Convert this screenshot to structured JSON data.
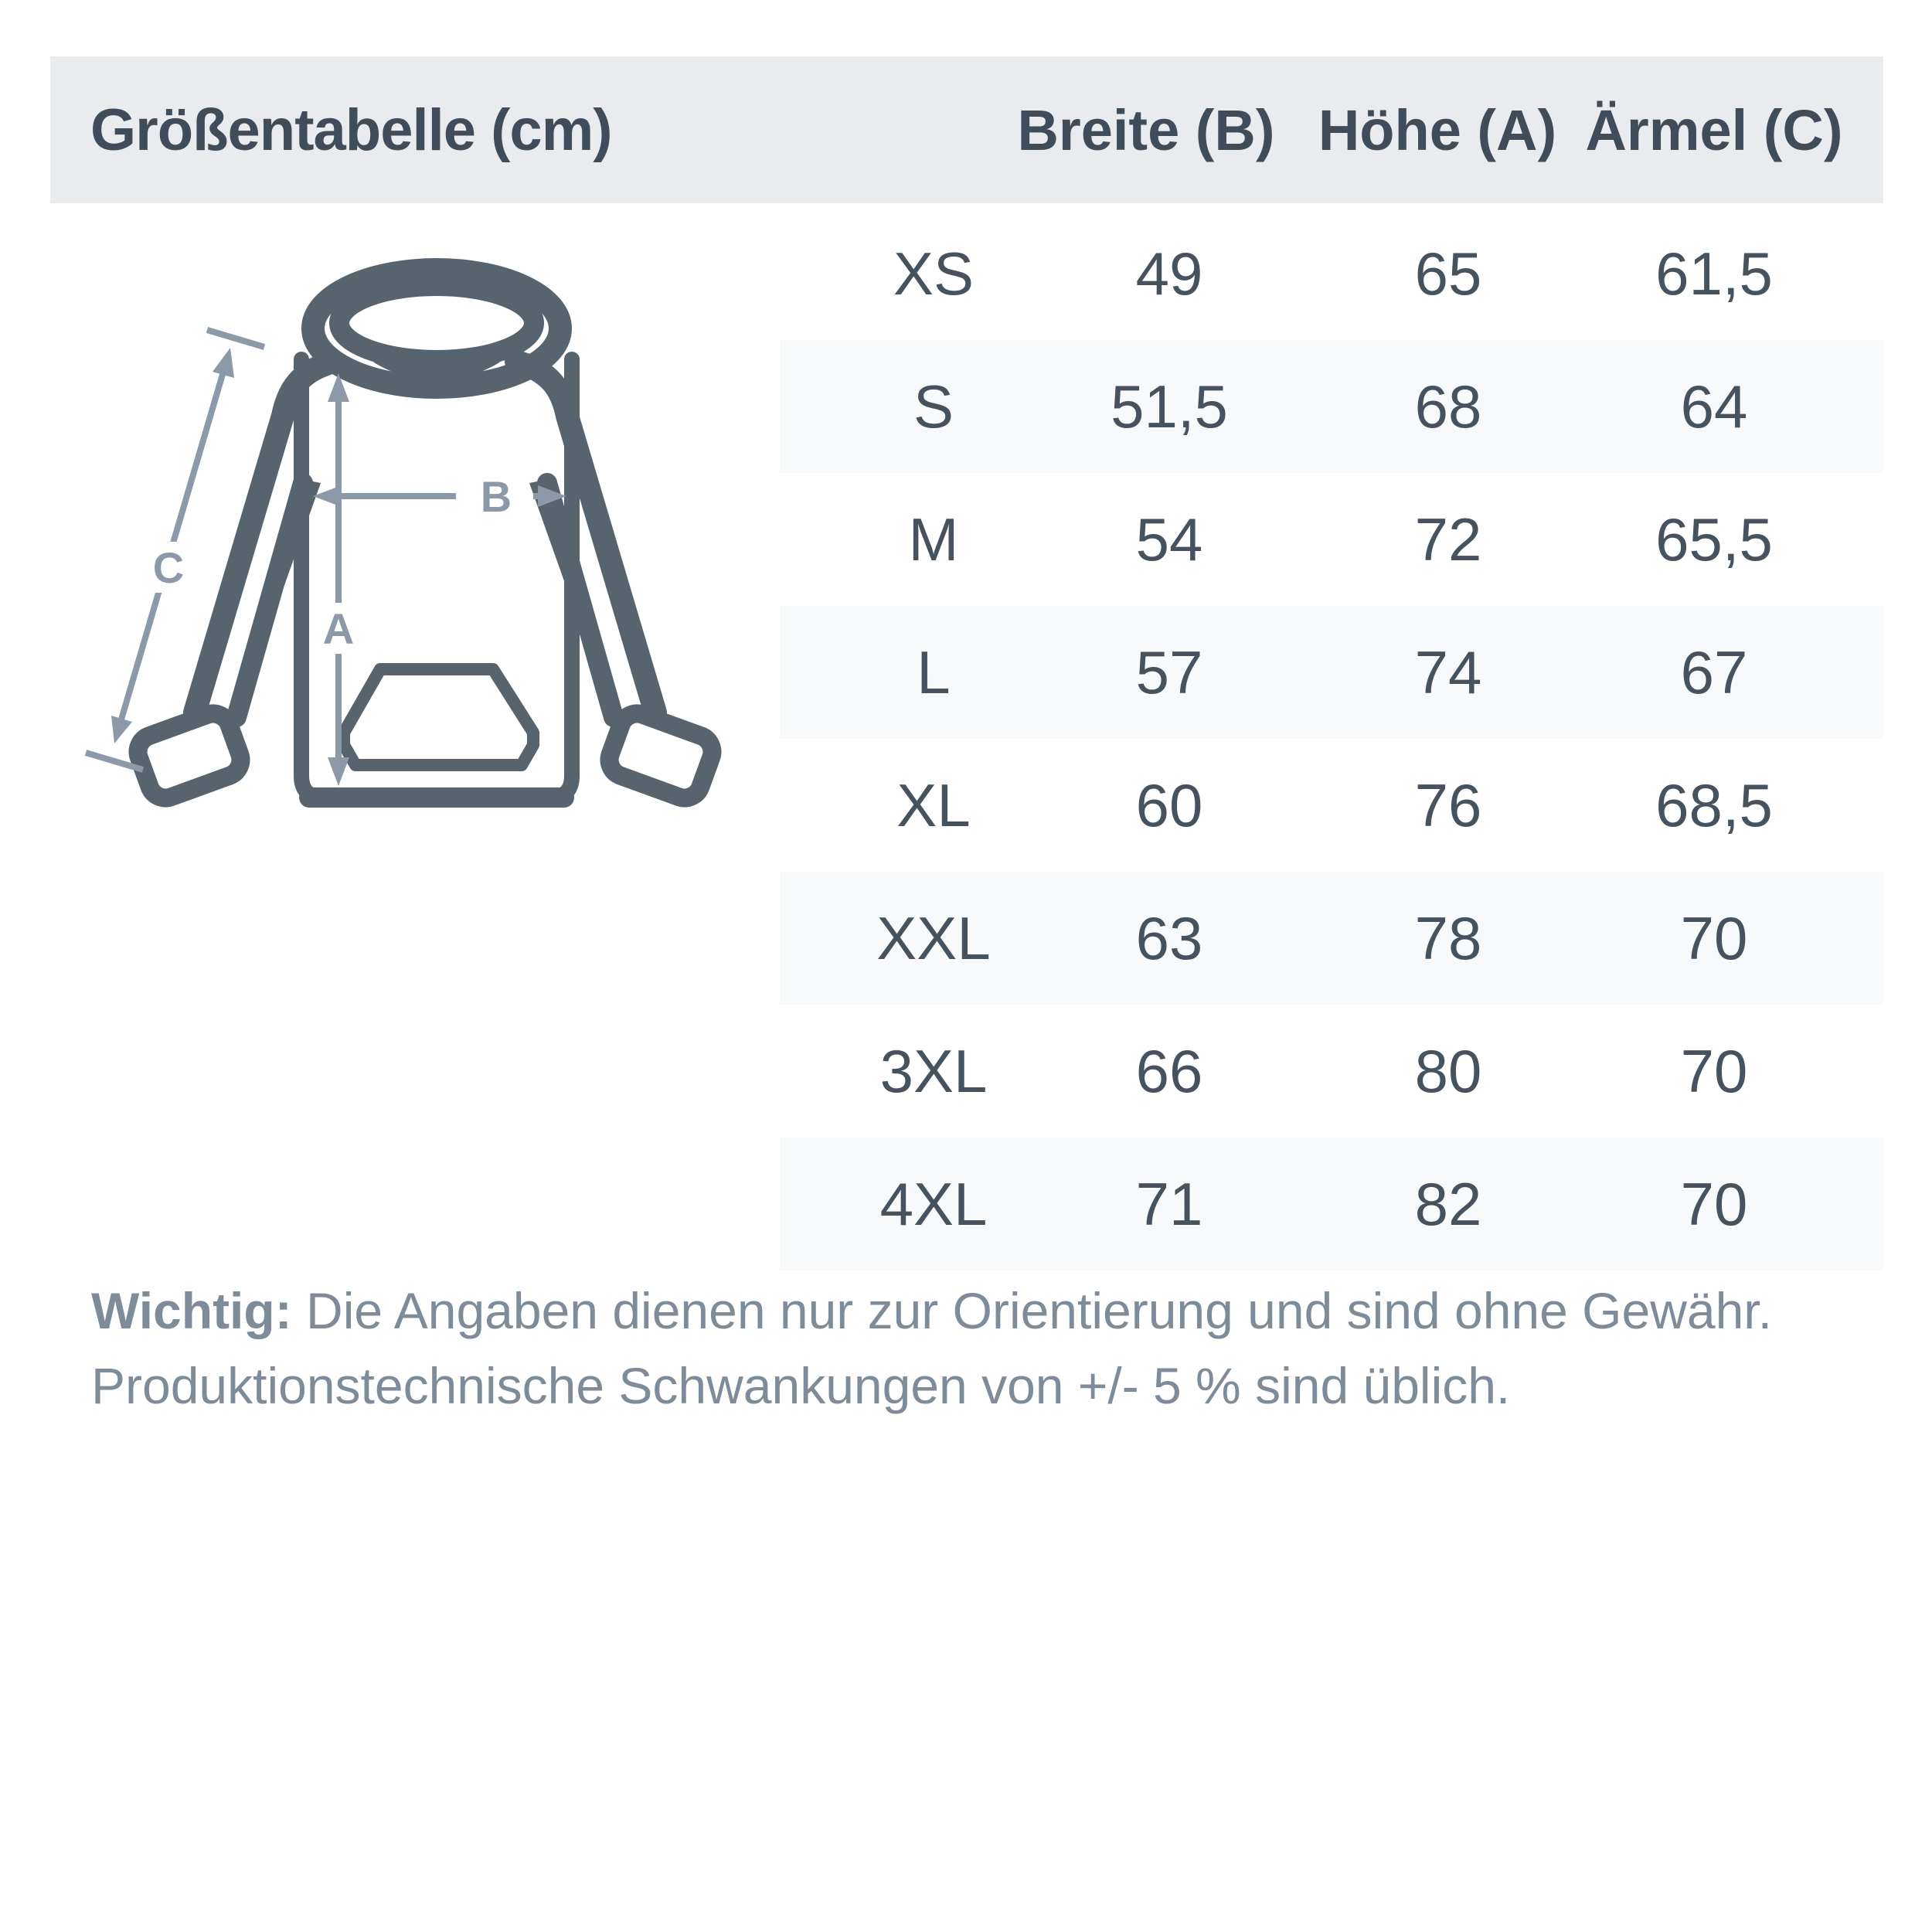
{
  "header": {
    "title": "Größentabelle (cm)",
    "columns": [
      {
        "label": "Breite (B)"
      },
      {
        "label": "Höhe (A)"
      },
      {
        "label": "Ärmel (C)"
      }
    ]
  },
  "diagram": {
    "measure_labels": {
      "height": "A",
      "width": "B",
      "sleeve": "C"
    }
  },
  "table": {
    "rows": [
      {
        "size": "XS",
        "breite": "49",
        "hoehe": "65",
        "aermel": "61,5"
      },
      {
        "size": "S",
        "breite": "51,5",
        "hoehe": "68",
        "aermel": "64"
      },
      {
        "size": "M",
        "breite": "54",
        "hoehe": "72",
        "aermel": "65,5"
      },
      {
        "size": "L",
        "breite": "57",
        "hoehe": "74",
        "aermel": "67"
      },
      {
        "size": "XL",
        "breite": "60",
        "hoehe": "76",
        "aermel": "68,5"
      },
      {
        "size": "XXL",
        "breite": "63",
        "hoehe": "78",
        "aermel": "70"
      },
      {
        "size": "3XL",
        "breite": "66",
        "hoehe": "80",
        "aermel": "70"
      },
      {
        "size": "4XL",
        "breite": "71",
        "hoehe": "82",
        "aermel": "70"
      }
    ]
  },
  "footer": {
    "bold_prefix": "Wichtig:",
    "line1_rest": " Die Angaben dienen nur zur Orientierung und sind ohne Gewähr.",
    "line2": "Produktionstechnische Schwankungen von +/- 5 % sind üblich."
  },
  "colors": {
    "header_bg": "#e9ebee",
    "header_text": "#414c5a",
    "table_text": "#47525f",
    "stripe_bg": "#f8f9fb",
    "hoodie_outline": "#57646e",
    "dimension_arrow": "#8b99a8",
    "footer_text": "#7e8b99"
  }
}
